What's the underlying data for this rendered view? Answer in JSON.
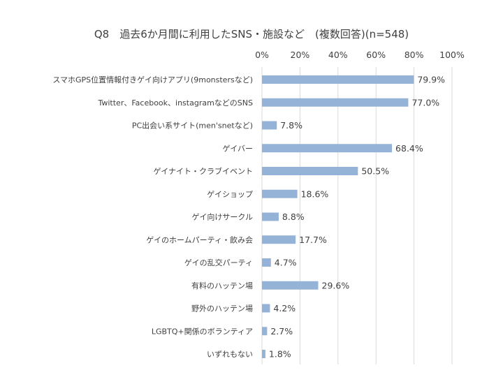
{
  "chart_data": {
    "type": "bar",
    "orientation": "horizontal",
    "title": "Q8　過去6か月間に利用したSNS・施設など　(複数回答)(n=548)",
    "categories": [
      "スマホGPS位置情報付きゲイ向けアプリ(9monstersなど)",
      "Twitter、Facebook、instagramなどのSNS",
      "PC出会い系サイト(men'snetなど)",
      "ゲイバー",
      "ゲイナイト・クラブイベント",
      "ゲイショップ",
      "ゲイ向けサークル",
      "ゲイのホームパーティ・飲み会",
      "ゲイの乱交パーティ",
      "有料のハッテン場",
      "野外のハッテン場",
      "LGBTQ+関係のボランティア",
      "いずれもない"
    ],
    "values": [
      79.9,
      77.0,
      7.8,
      68.4,
      50.5,
      18.6,
      8.8,
      17.7,
      4.7,
      29.6,
      4.2,
      2.7,
      1.8
    ],
    "value_labels": [
      "79.9%",
      "77.0%",
      "7.8%",
      "68.4%",
      "50.5%",
      "18.6%",
      "8.8%",
      "17.7%",
      "4.7%",
      "29.6%",
      "4.2%",
      "2.7%",
      "1.8%"
    ],
    "x_ticks": [
      "0%",
      "20%",
      "40%",
      "60%",
      "80%",
      "100%"
    ],
    "xlim": [
      0,
      100
    ],
    "axis_position": "top",
    "grid": true,
    "legend": "none",
    "colors": {
      "bar": "#95B3D7",
      "grid": "#D9D9D9",
      "text": "#404040"
    }
  }
}
